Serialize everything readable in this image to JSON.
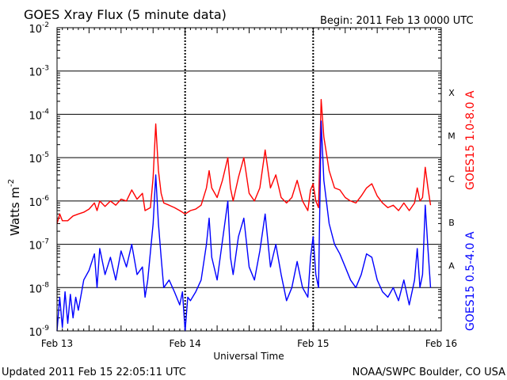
{
  "chart_data": {
    "type": "line",
    "title": "GOES Xray Flux (5 minute data)",
    "begin_label": "Begin:  2011 Feb 13 0000 UTC",
    "xlabel": "Universal Time",
    "ylabel": "Watts m",
    "ylabel_exponent": "-2",
    "yscale": "log",
    "ylim": [
      1e-09,
      0.01
    ],
    "y_ticks": [
      {
        "value": 0.01,
        "exp": "-2"
      },
      {
        "value": 0.001,
        "exp": "-3"
      },
      {
        "value": 0.0001,
        "exp": "-4"
      },
      {
        "value": 1e-05,
        "exp": "-5"
      },
      {
        "value": 1e-06,
        "exp": "-6"
      },
      {
        "value": 1e-07,
        "exp": "-7"
      },
      {
        "value": 1e-08,
        "exp": "-8"
      },
      {
        "value": 1e-09,
        "exp": "-9"
      }
    ],
    "xlim": [
      0,
      72
    ],
    "x_unit": "hours since 2011 Feb 13 0000 UTC",
    "x_ticks": [
      {
        "value": 0,
        "label": "Feb 13"
      },
      {
        "value": 24,
        "label": "Feb 14"
      },
      {
        "value": 48,
        "label": "Feb 15"
      },
      {
        "value": 72,
        "label": "Feb 16"
      }
    ],
    "flare_classes": [
      {
        "label": "X",
        "value": 0.00032
      },
      {
        "label": "M",
        "value": 3.2e-05
      },
      {
        "label": "C",
        "value": 3.2e-06
      },
      {
        "label": "B",
        "value": 3.2e-07
      },
      {
        "label": "A",
        "value": 3.2e-08
      }
    ],
    "series": [
      {
        "name": "GOES15 1.0-8.0 A",
        "color": "#ff0000",
        "points": [
          [
            0.0,
            3e-07
          ],
          [
            0.5,
            5e-07
          ],
          [
            1.0,
            3.5e-07
          ],
          [
            2.0,
            3.5e-07
          ],
          [
            3.0,
            4.5e-07
          ],
          [
            4.0,
            5e-07
          ],
          [
            5.0,
            5.5e-07
          ],
          [
            6.0,
            6.5e-07
          ],
          [
            7.0,
            9e-07
          ],
          [
            7.5,
            6e-07
          ],
          [
            8.0,
            1e-06
          ],
          [
            9.0,
            7.5e-07
          ],
          [
            10.0,
            1e-06
          ],
          [
            11.0,
            8e-07
          ],
          [
            12.0,
            1.1e-06
          ],
          [
            13.0,
            1e-06
          ],
          [
            14.0,
            1.8e-06
          ],
          [
            15.0,
            1.1e-06
          ],
          [
            16.0,
            1.5e-06
          ],
          [
            16.5,
            6e-07
          ],
          [
            17.5,
            7e-07
          ],
          [
            18.0,
            3.5e-06
          ],
          [
            18.5,
            6e-05
          ],
          [
            19.0,
            5e-06
          ],
          [
            19.5,
            1.5e-06
          ],
          [
            20.0,
            9e-07
          ],
          [
            21.0,
            8e-07
          ],
          [
            22.0,
            7e-07
          ],
          [
            23.0,
            6e-07
          ],
          [
            24.0,
            5e-07
          ],
          [
            25.0,
            6e-07
          ],
          [
            26.0,
            6.5e-07
          ],
          [
            27.0,
            8e-07
          ],
          [
            28.0,
            2e-06
          ],
          [
            28.5,
            5e-06
          ],
          [
            29.0,
            2e-06
          ],
          [
            30.0,
            1.2e-06
          ],
          [
            31.0,
            3e-06
          ],
          [
            32.0,
            1e-05
          ],
          [
            32.5,
            2e-06
          ],
          [
            33.0,
            1e-06
          ],
          [
            34.0,
            3.5e-06
          ],
          [
            35.0,
            1e-05
          ],
          [
            36.0,
            1.5e-06
          ],
          [
            37.0,
            1e-06
          ],
          [
            38.0,
            2e-06
          ],
          [
            39.0,
            1.5e-05
          ],
          [
            40.0,
            2e-06
          ],
          [
            41.0,
            4e-06
          ],
          [
            42.0,
            1.2e-06
          ],
          [
            43.0,
            9e-07
          ],
          [
            44.0,
            1.2e-06
          ],
          [
            45.0,
            3e-06
          ],
          [
            46.0,
            1e-06
          ],
          [
            47.0,
            6e-07
          ],
          [
            47.5,
            1.8e-06
          ],
          [
            48.0,
            2.5e-06
          ],
          [
            48.5,
            1e-06
          ],
          [
            49.0,
            7e-07
          ],
          [
            49.5,
            0.00022
          ],
          [
            50.0,
            3e-05
          ],
          [
            51.0,
            5e-06
          ],
          [
            52.0,
            2e-06
          ],
          [
            53.0,
            1.8e-06
          ],
          [
            54.0,
            1.2e-06
          ],
          [
            55.0,
            1e-06
          ],
          [
            56.0,
            9e-07
          ],
          [
            57.0,
            1.3e-06
          ],
          [
            58.0,
            2e-06
          ],
          [
            59.0,
            2.5e-06
          ],
          [
            60.0,
            1.3e-06
          ],
          [
            61.0,
            9e-07
          ],
          [
            62.0,
            7e-07
          ],
          [
            63.0,
            8e-07
          ],
          [
            64.0,
            6e-07
          ],
          [
            65.0,
            9e-07
          ],
          [
            66.0,
            6e-07
          ],
          [
            67.0,
            9e-07
          ],
          [
            67.5,
            2e-06
          ],
          [
            68.0,
            1e-06
          ],
          [
            68.5,
            1.2e-06
          ],
          [
            69.0,
            6e-06
          ],
          [
            69.5,
            2e-06
          ],
          [
            70.0,
            8e-07
          ]
        ]
      },
      {
        "name": "GOES15 0.5-4.0 A",
        "color": "#0000ff",
        "points": [
          [
            0.0,
            1e-09
          ],
          [
            0.5,
            6e-09
          ],
          [
            1.0,
            1.2e-09
          ],
          [
            1.5,
            8e-09
          ],
          [
            2.0,
            1.5e-09
          ],
          [
            2.5,
            7e-09
          ],
          [
            3.0,
            2e-09
          ],
          [
            3.5,
            6e-09
          ],
          [
            4.0,
            3e-09
          ],
          [
            5.0,
            1.5e-08
          ],
          [
            6.0,
            2.5e-08
          ],
          [
            7.0,
            6e-08
          ],
          [
            7.5,
            1e-08
          ],
          [
            8.0,
            8e-08
          ],
          [
            9.0,
            2e-08
          ],
          [
            10.0,
            5e-08
          ],
          [
            11.0,
            1.5e-08
          ],
          [
            12.0,
            7e-08
          ],
          [
            13.0,
            3e-08
          ],
          [
            14.0,
            1e-07
          ],
          [
            15.0,
            2e-08
          ],
          [
            16.0,
            3e-08
          ],
          [
            16.5,
            6e-09
          ],
          [
            17.0,
            1.5e-08
          ],
          [
            18.0,
            3e-07
          ],
          [
            18.5,
            4e-06
          ],
          [
            19.0,
            3e-07
          ],
          [
            19.5,
            5e-08
          ],
          [
            20.0,
            1e-08
          ],
          [
            21.0,
            1.5e-08
          ],
          [
            22.0,
            8e-09
          ],
          [
            23.0,
            4e-09
          ],
          [
            23.5,
            8e-09
          ],
          [
            24.0,
            1e-09
          ],
          [
            24.5,
            6e-09
          ],
          [
            25.0,
            5e-09
          ],
          [
            26.0,
            8e-09
          ],
          [
            27.0,
            1.5e-08
          ],
          [
            28.0,
            1e-07
          ],
          [
            28.5,
            4e-07
          ],
          [
            29.0,
            5e-08
          ],
          [
            30.0,
            1.5e-08
          ],
          [
            31.0,
            1.2e-07
          ],
          [
            32.0,
            1e-06
          ],
          [
            32.5,
            5e-08
          ],
          [
            33.0,
            2e-08
          ],
          [
            34.0,
            1.5e-07
          ],
          [
            35.0,
            4e-07
          ],
          [
            36.0,
            3e-08
          ],
          [
            37.0,
            1.5e-08
          ],
          [
            38.0,
            7e-08
          ],
          [
            39.0,
            5e-07
          ],
          [
            40.0,
            3e-08
          ],
          [
            41.0,
            1e-07
          ],
          [
            42.0,
            2e-08
          ],
          [
            43.0,
            5e-09
          ],
          [
            44.0,
            1e-08
          ],
          [
            45.0,
            4e-08
          ],
          [
            46.0,
            1e-08
          ],
          [
            47.0,
            6e-09
          ],
          [
            47.5,
            5e-08
          ],
          [
            48.0,
            1.5e-07
          ],
          [
            48.5,
            2e-08
          ],
          [
            49.0,
            1e-08
          ],
          [
            49.5,
            7e-05
          ],
          [
            50.0,
            3e-06
          ],
          [
            51.0,
            3e-07
          ],
          [
            52.0,
            1e-07
          ],
          [
            53.0,
            6e-08
          ],
          [
            54.0,
            3e-08
          ],
          [
            55.0,
            1.5e-08
          ],
          [
            56.0,
            1e-08
          ],
          [
            57.0,
            2e-08
          ],
          [
            58.0,
            6e-08
          ],
          [
            59.0,
            5e-08
          ],
          [
            60.0,
            1.5e-08
          ],
          [
            61.0,
            8e-09
          ],
          [
            62.0,
            6e-09
          ],
          [
            63.0,
            1e-08
          ],
          [
            64.0,
            5e-09
          ],
          [
            65.0,
            1.5e-08
          ],
          [
            66.0,
            4e-09
          ],
          [
            67.0,
            1.5e-08
          ],
          [
            67.5,
            8e-08
          ],
          [
            68.0,
            1e-08
          ],
          [
            68.5,
            2e-08
          ],
          [
            69.0,
            8e-07
          ],
          [
            69.5,
            8e-08
          ],
          [
            70.0,
            1e-08
          ]
        ]
      }
    ]
  },
  "footer": {
    "updated": "Updated 2011 Feb 15 22:05:11 UTC",
    "credit": "NOAA/SWPC Boulder, CO USA"
  }
}
